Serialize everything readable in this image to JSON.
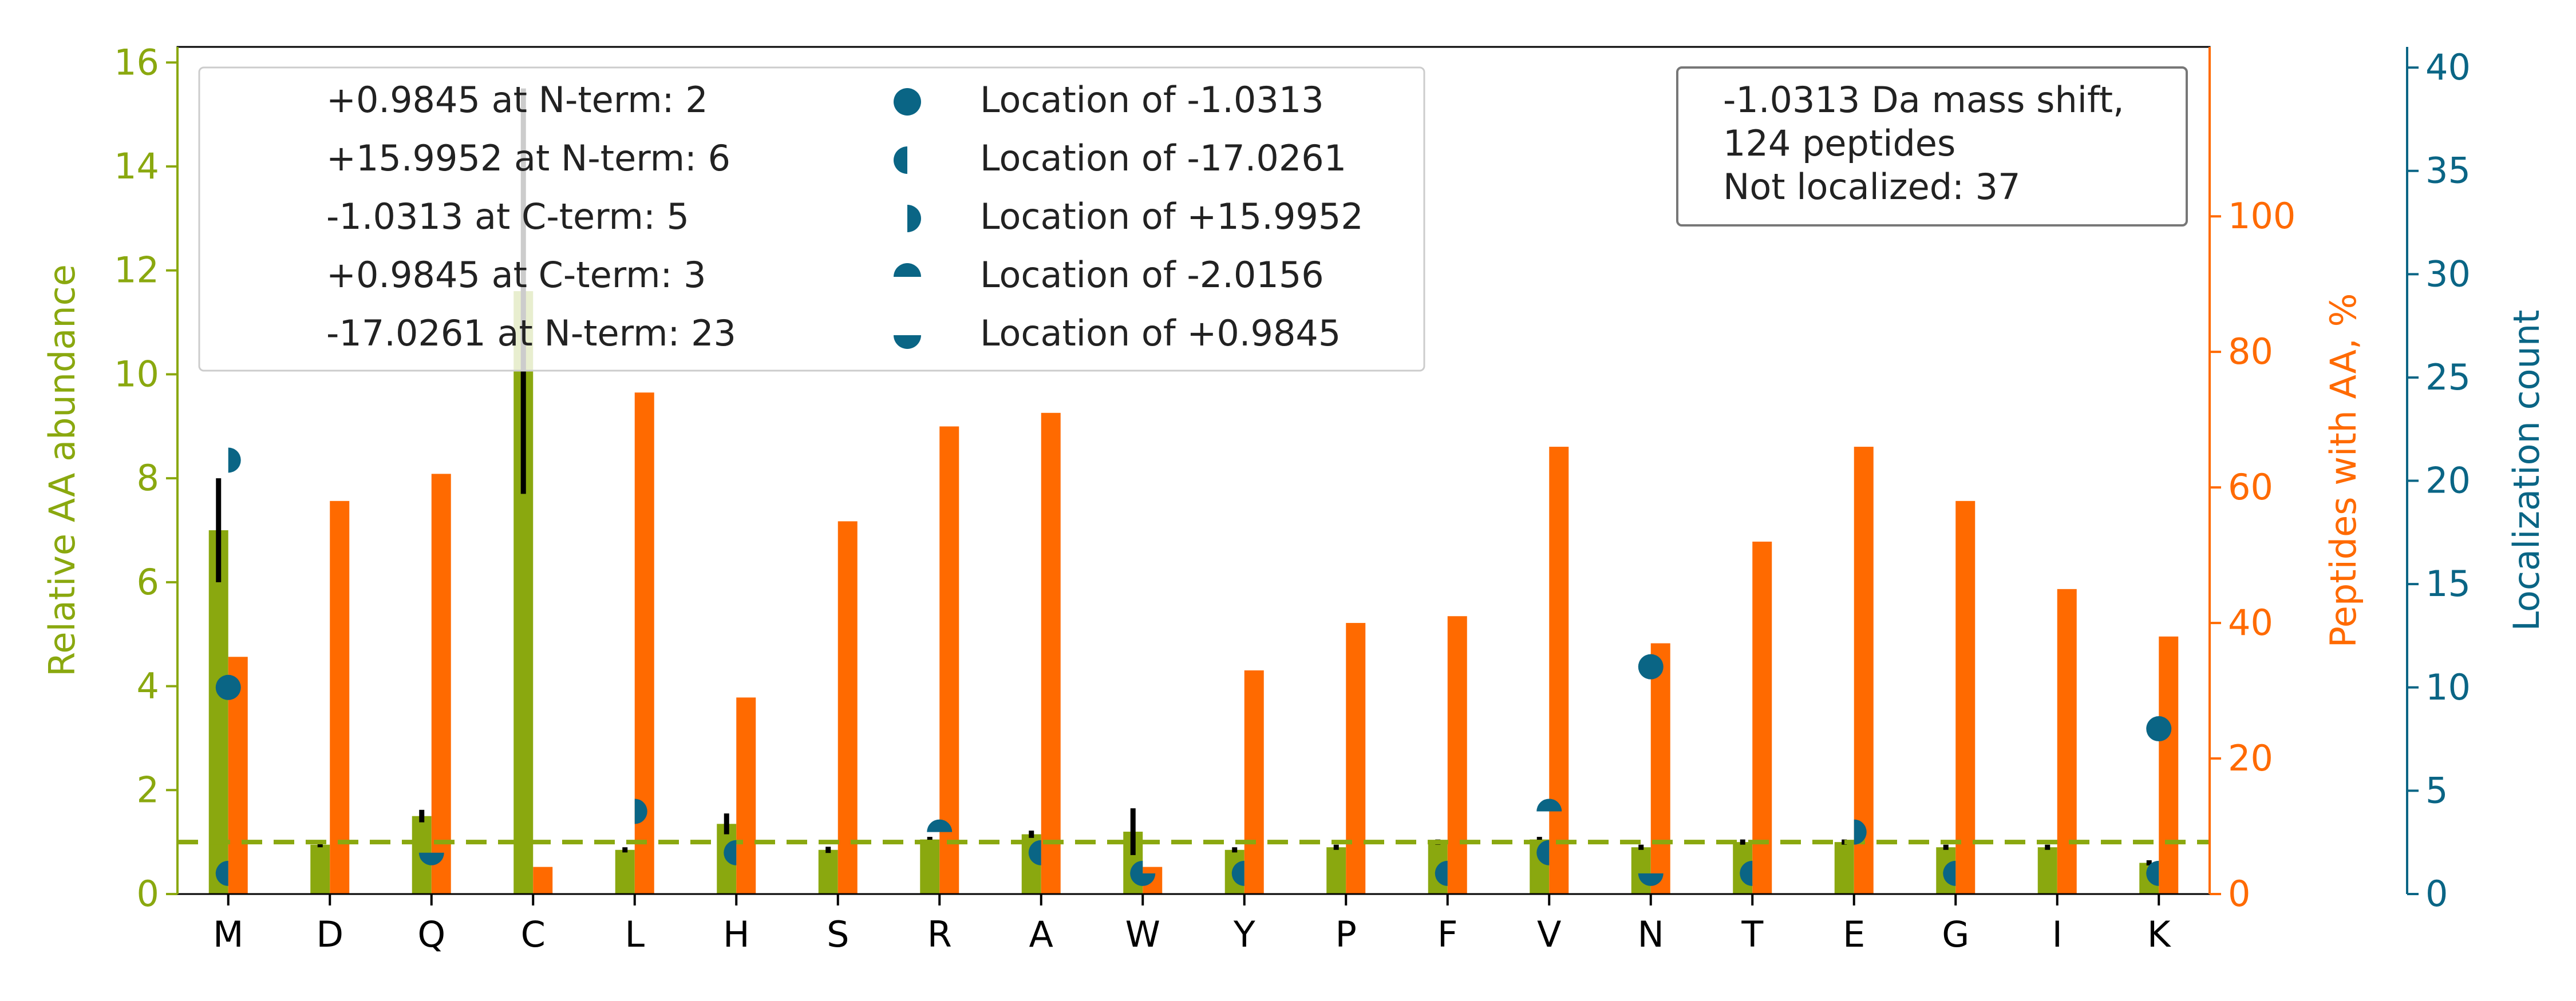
{
  "chart_data": {
    "type": "bar",
    "categories": [
      "M",
      "D",
      "Q",
      "C",
      "L",
      "H",
      "S",
      "R",
      "A",
      "W",
      "Y",
      "P",
      "F",
      "V",
      "N",
      "T",
      "E",
      "G",
      "I",
      "K"
    ],
    "y_left": {
      "label": "Relative AA abundance",
      "lim": [
        0,
        16.3
      ],
      "ticks": [
        0,
        2,
        4,
        6,
        8,
        10,
        12,
        14,
        16
      ],
      "color": "#8aa80f"
    },
    "y_right": {
      "label": "Peptides with AA, %",
      "lim": [
        0,
        125
      ],
      "ticks": [
        0,
        20,
        40,
        60,
        80,
        100
      ],
      "color": "#ff6a00"
    },
    "y_right2": {
      "label": "Localization count",
      "lim": [
        0,
        41
      ],
      "ticks": [
        0,
        5,
        10,
        15,
        20,
        25,
        30,
        35,
        40
      ],
      "color": "#0a6585"
    },
    "reference_line": {
      "y": 1.0,
      "axis": "left",
      "style": "dashed",
      "color": "#8aa80f"
    },
    "series": [
      {
        "axis": "left",
        "color": "#8aa80f",
        "values": [
          7.0,
          0.95,
          1.5,
          11.6,
          0.85,
          1.35,
          0.85,
          1.05,
          1.15,
          1.2,
          0.85,
          0.9,
          1.0,
          1.05,
          0.9,
          1.0,
          1.0,
          0.9,
          0.9,
          0.6
        ],
        "error": [
          1.0,
          0.05,
          0.12,
          3.9,
          0.05,
          0.2,
          0.06,
          0.05,
          0.07,
          0.45,
          0.05,
          0.05,
          0.05,
          0.05,
          0.05,
          0.05,
          0.05,
          0.05,
          0.05,
          0.05
        ]
      },
      {
        "axis": "right",
        "color": "#ff6a00",
        "values": [
          35,
          58,
          62,
          4,
          74,
          29,
          55,
          69,
          71,
          4,
          33,
          40,
          41,
          66,
          37,
          52,
          66,
          58,
          45,
          38
        ]
      }
    ],
    "localization_markers": [
      {
        "series": 0,
        "points": [
          {
            "cat": "M",
            "y": 10
          },
          {
            "cat": "N",
            "y": 11
          },
          {
            "cat": "K",
            "y": 8
          }
        ]
      },
      {
        "series": 1,
        "points": [
          {
            "cat": "M",
            "y": 1
          },
          {
            "cat": "H",
            "y": 2
          },
          {
            "cat": "A",
            "y": 2
          },
          {
            "cat": "W",
            "y": 1
          },
          {
            "cat": "Y",
            "y": 1
          },
          {
            "cat": "F",
            "y": 1
          },
          {
            "cat": "V",
            "y": 2
          },
          {
            "cat": "T",
            "y": 1
          },
          {
            "cat": "G",
            "y": 1
          },
          {
            "cat": "K",
            "y": 1
          }
        ]
      },
      {
        "series": 2,
        "points": [
          {
            "cat": "M",
            "y": 21
          },
          {
            "cat": "L",
            "y": 4
          },
          {
            "cat": "E",
            "y": 3
          }
        ]
      },
      {
        "series": 3,
        "points": [
          {
            "cat": "R",
            "y": 3
          },
          {
            "cat": "V",
            "y": 4
          }
        ]
      },
      {
        "series": 4,
        "points": [
          {
            "cat": "Q",
            "y": 2
          },
          {
            "cat": "W",
            "y": 1
          },
          {
            "cat": "N",
            "y": 1
          }
        ]
      }
    ],
    "legend": {
      "placement": "top-left",
      "text_entries": [
        "+0.9845 at N-term: 2",
        "+15.9952 at N-term: 6",
        "-1.0313 at C-term: 5",
        "+0.9845 at C-term: 3",
        "-17.0261 at N-term: 23"
      ],
      "marker_entries": [
        {
          "label": "Location of -1.0313",
          "shape": "full"
        },
        {
          "label": "Location of -17.0261",
          "shape": "left"
        },
        {
          "label": "Location of +15.9952",
          "shape": "right"
        },
        {
          "label": "Location of -2.0156",
          "shape": "top"
        },
        {
          "label": "Location of +0.9845",
          "shape": "bottom"
        }
      ],
      "marker_color": "#0a6585"
    },
    "info_box": {
      "placement": "top-right",
      "lines": [
        "-1.0313 Da mass shift,",
        "124 peptides",
        "Not localized: 37"
      ]
    }
  }
}
